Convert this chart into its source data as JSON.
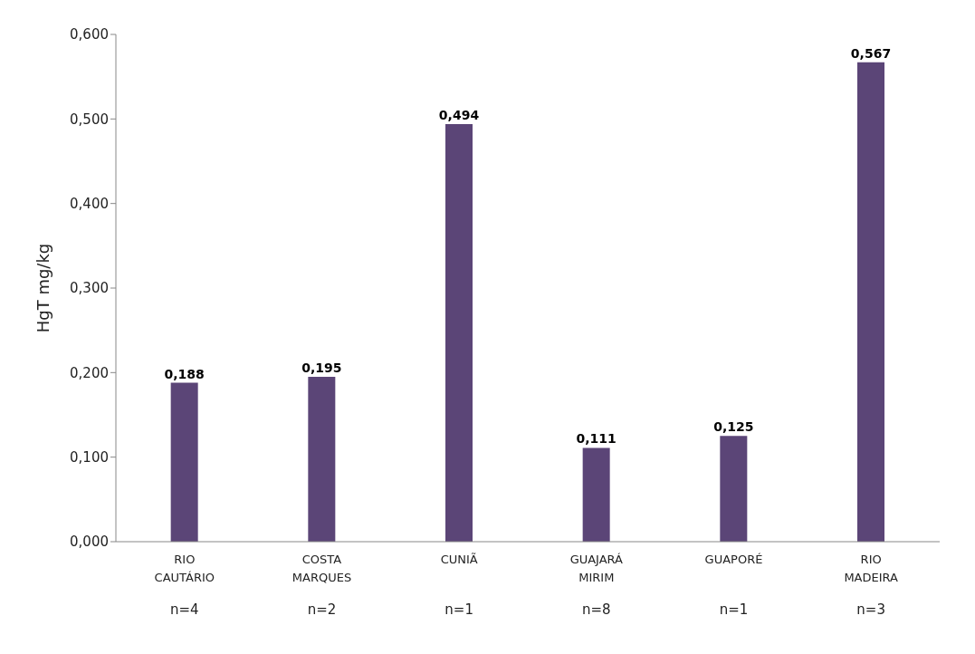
{
  "chart_data": {
    "type": "bar",
    "ylabel": "HgT mg/kg",
    "categories": [
      "RIO\nCAUTÁRIO\nn=4",
      "COSTA\nMARQUES\nn=2",
      "CUNIÃ\nn=1",
      "GUAJARÁ\nMIRIM\nn=8",
      "GUAPORÉ\nn=1",
      "RIO\nMADEIRA\nn=3"
    ],
    "values": [
      0.188,
      0.195,
      0.494,
      0.111,
      0.125,
      0.567
    ],
    "value_labels": [
      "0,188",
      "0,195",
      "0,494",
      "0,111",
      "0,125",
      "0,567"
    ],
    "color": "#5b4577",
    "ylim": [
      0,
      0.6
    ],
    "yticks": [
      {
        "value": 0,
        "label": "0,000"
      },
      {
        "value": 0.1,
        "label": "0,100"
      },
      {
        "value": 0.2,
        "label": "0,200"
      },
      {
        "value": 0.3,
        "label": "0,300"
      },
      {
        "value": 0.4,
        "label": "0,400"
      },
      {
        "value": 0.5,
        "label": "0,500"
      },
      {
        "value": 0.6,
        "label": "0,600"
      }
    ],
    "grid": false,
    "legend": false
  }
}
